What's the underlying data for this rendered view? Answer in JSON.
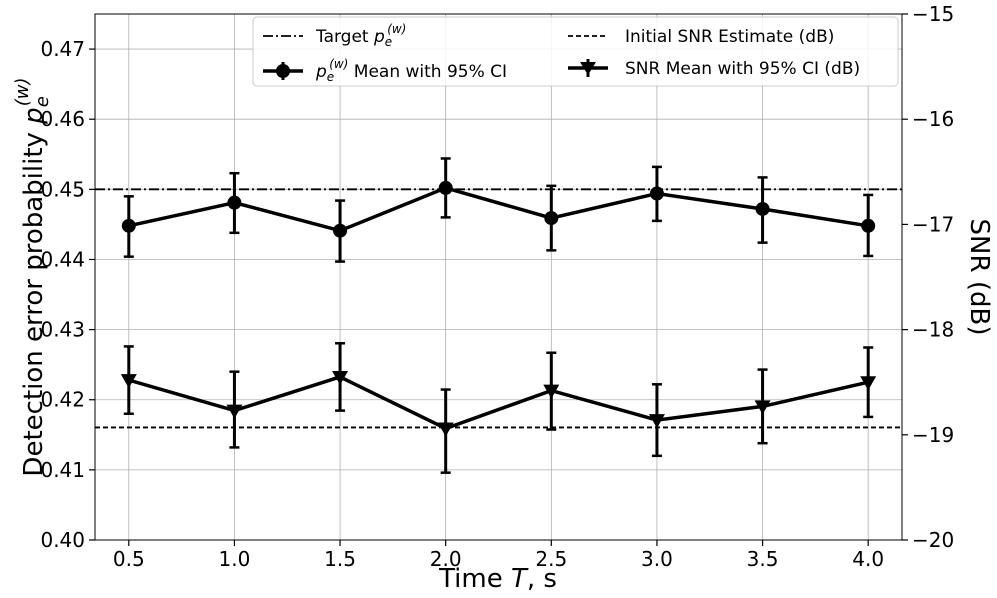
{
  "chart_data": {
    "type": "line",
    "x": [
      0.5,
      1.0,
      1.5,
      2.0,
      2.5,
      3.0,
      3.5,
      4.0
    ],
    "xticks": [
      "0.5",
      "1.0",
      "1.5",
      "2.0",
      "2.5",
      "3.0",
      "3.5",
      "4.0"
    ],
    "xlim": [
      0.34,
      4.16
    ],
    "xlabel": {
      "pre": "Time ",
      "italic": "T",
      "post": ", s"
    },
    "ylabel_left": {
      "pre": "Detection error probability ",
      "p": "p",
      "sub": "e",
      "sup": "(w)"
    },
    "ylim_left": [
      0.4,
      0.475
    ],
    "yticks_left": [
      "0.40",
      "0.41",
      "0.42",
      "0.43",
      "0.44",
      "0.45",
      "0.46",
      "0.47"
    ],
    "ylabel_right": "SNR (dB)",
    "ylim_right": [
      -20,
      -15
    ],
    "yticks_right": [
      "−15",
      "−16",
      "−17",
      "−18",
      "−19",
      "−20"
    ],
    "grid": true,
    "legend_position": "upper-center",
    "series": [
      {
        "name": "pe Mean with 95% CI",
        "axis": "left",
        "marker": "circle",
        "values": [
          0.4448,
          0.4481,
          0.4441,
          0.4502,
          0.4459,
          0.4494,
          0.4472,
          0.4448
        ],
        "ci_low": [
          0.4404,
          0.4438,
          0.4397,
          0.446,
          0.4413,
          0.4455,
          0.4424,
          0.4405
        ],
        "ci_high": [
          0.449,
          0.4523,
          0.4484,
          0.4544,
          0.4505,
          0.4532,
          0.4517,
          0.4492
        ]
      },
      {
        "name": "SNR Mean with 95% CI (dB)",
        "axis": "right",
        "marker": "triangle-down",
        "values": [
          -18.48,
          -18.77,
          -18.45,
          -18.94,
          -18.58,
          -18.86,
          -18.73,
          -18.5
        ],
        "ci_low": [
          -18.8,
          -19.12,
          -18.77,
          -19.36,
          -18.95,
          -19.2,
          -19.08,
          -18.83
        ],
        "ci_high": [
          -18.16,
          -18.4,
          -18.13,
          -18.57,
          -18.22,
          -18.52,
          -18.38,
          -18.17
        ]
      }
    ],
    "reference_lines": [
      {
        "name": "Target pe",
        "axis": "left",
        "value": 0.45,
        "style": "dashdot"
      },
      {
        "name": "Initial SNR Estimate (dB)",
        "axis": "right",
        "value": -18.93,
        "style": "dashed"
      }
    ]
  },
  "legend": {
    "target": {
      "pre": "Target ",
      "p": "p",
      "sub": "e",
      "sup": "(w)"
    },
    "pe_mean": {
      "p": "p",
      "sub": "e",
      "sup": "(w)",
      "post": " Mean with 95% CI"
    },
    "initial_snr": "Initial SNR Estimate (dB)",
    "snr_mean": "SNR Mean with 95% CI (dB)"
  }
}
